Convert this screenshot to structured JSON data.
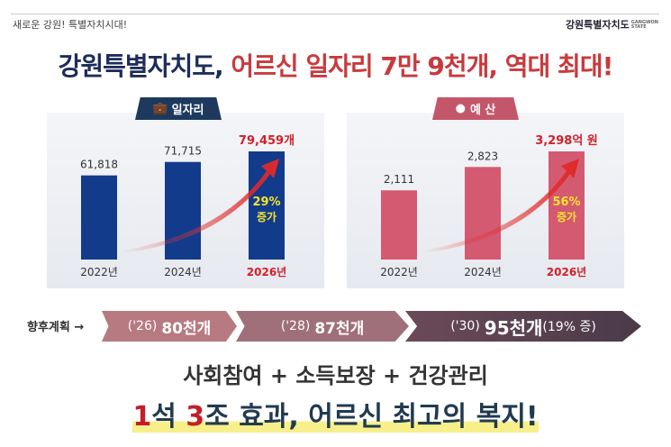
{
  "header": {
    "slogan": "새로운 강원! 특별자치시대!",
    "logo_text": "강원특별자치도",
    "logo_sub1": "GANGWON",
    "logo_sub2": "STATE"
  },
  "title": {
    "part1": "강원특별자치도,",
    "part2": "어르신 일자리 7만 9천개, 역대 최대!"
  },
  "colors": {
    "navy": "#1d2d5a",
    "red": "#c83a3e",
    "jobs_bar": "#123b8c",
    "budget_bar": "#d45a72",
    "growth_text": "#f5e52a"
  },
  "chart_data": [
    {
      "type": "bar",
      "title": "일자리",
      "icon": "briefcase-icon",
      "categories": [
        "2022년",
        "2024년",
        "2026년"
      ],
      "values": [
        61818,
        71715,
        79459
      ],
      "labels": [
        "61,818",
        "71,715",
        "79,459개"
      ],
      "growth": "29%",
      "growth_label": "증가"
    },
    {
      "type": "bar",
      "title": "예 산",
      "icon": "money-icon",
      "categories": [
        "2022년",
        "2024년",
        "2026년"
      ],
      "values": [
        2111,
        2823,
        3298
      ],
      "labels": [
        "2,111",
        "2,823",
        "3,298억 원"
      ],
      "growth": "56%",
      "growth_label": "증가"
    }
  ],
  "plan": {
    "label": "향후계획",
    "steps": [
      {
        "year": "('26)",
        "value": "80천개",
        "extra": ""
      },
      {
        "year": "('28)",
        "value": "87천개",
        "extra": ""
      },
      {
        "year": "('30)",
        "value": "95천개",
        "extra": "(19% 증)"
      }
    ]
  },
  "footer": {
    "line1": "사회참여 + 소득보장 + 건강관리",
    "line2_n1": "1",
    "line2_a": "석 ",
    "line2_n2": "3",
    "line2_b": "조 효과, 어르신 최고의 복지!"
  }
}
